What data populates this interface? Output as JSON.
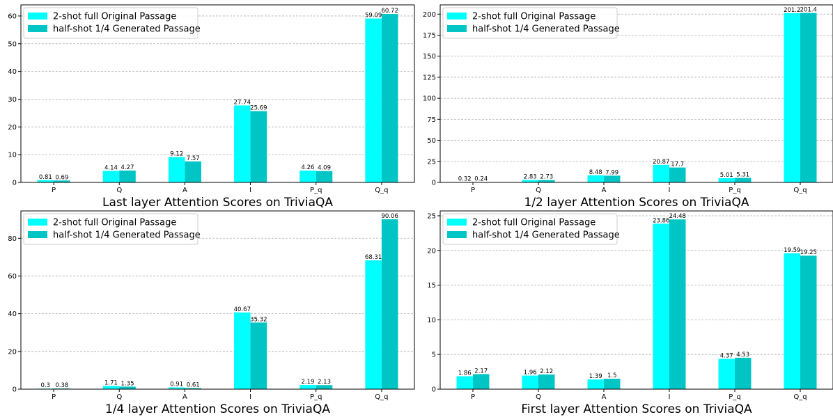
{
  "colors": {
    "series1": "#00ffff",
    "series2": "#00c5c5",
    "grid": "#b0b0b0",
    "axis": "#000000"
  },
  "legend": {
    "entries": [
      "2-shot full Original Passage",
      "half-shot 1/4 Generated Passage"
    ],
    "placement": "top-left"
  },
  "chart_data": [
    {
      "type": "bar",
      "title": "Last layer Attention Scores on TriviaQA",
      "categories": [
        "P",
        "Q",
        "A",
        "I",
        "P_q",
        "Q_q"
      ],
      "series": [
        {
          "name": "2-shot full Original Passage",
          "values": [
            0.81,
            4.14,
            9.12,
            27.74,
            4.26,
            59.09
          ],
          "labels": [
            "0.81",
            "4.14",
            "9.12",
            "27.74",
            "4.26",
            "59.09"
          ]
        },
        {
          "name": "half-shot 1/4 Generated Passage",
          "values": [
            0.69,
            4.27,
            7.57,
            25.69,
            4.09,
            60.72
          ],
          "labels": [
            "0.69",
            "4.27",
            "7.57",
            "25.69",
            "4.09",
            "60.72"
          ]
        }
      ],
      "ylim": [
        0,
        64
      ],
      "yticks": [
        0,
        10,
        20,
        30,
        40,
        50,
        60
      ],
      "grid": "y",
      "legend_placement": "top-left"
    },
    {
      "type": "bar",
      "title": "1/2 layer Attention Scores on TriviaQA",
      "categories": [
        "P",
        "Q",
        "A",
        "I",
        "P_q",
        "Q_q"
      ],
      "series": [
        {
          "name": "2-shot full Original Passage",
          "values": [
            0.32,
            2.83,
            8.48,
            20.87,
            5.01,
            201.2
          ],
          "labels": [
            "0.32",
            "2.83",
            "8.48",
            "20.87",
            "5.01",
            "201.2"
          ]
        },
        {
          "name": "half-shot 1/4 Generated Passage",
          "values": [
            0.24,
            2.73,
            7.99,
            17.7,
            5.31,
            201.4
          ],
          "labels": [
            "0.24",
            "2.73",
            "7.99",
            "17.7",
            "5.31",
            "201.4"
          ]
        }
      ],
      "ylim": [
        0,
        211
      ],
      "yticks": [
        0,
        25,
        50,
        75,
        100,
        125,
        150,
        175,
        200
      ],
      "grid": "y",
      "legend_placement": "top-left"
    },
    {
      "type": "bar",
      "title": "1/4 layer Attention Scores on TriviaQA",
      "categories": [
        "P",
        "Q",
        "A",
        "I",
        "P_q",
        "Q_q"
      ],
      "series": [
        {
          "name": "2-shot full Original Passage",
          "values": [
            0.3,
            1.71,
            0.91,
            40.67,
            2.19,
            68.31
          ],
          "labels": [
            "0.3",
            "1.71",
            "0.91",
            "40.67",
            "2.19",
            "68.31"
          ]
        },
        {
          "name": "half-shot 1/4 Generated Passage",
          "values": [
            0.38,
            1.35,
            0.61,
            35.32,
            2.13,
            90.06
          ],
          "labels": [
            "0.38",
            "1.35",
            "0.61",
            "35.32",
            "2.13",
            "90.06"
          ]
        }
      ],
      "ylim": [
        0,
        94.5
      ],
      "yticks": [
        0,
        20,
        40,
        60,
        80
      ],
      "grid": "y",
      "legend_placement": "top-left"
    },
    {
      "type": "bar",
      "title": "First layer Attention Scores on TriviaQA",
      "categories": [
        "P",
        "Q",
        "A",
        "I",
        "P_q",
        "Q_q"
      ],
      "series": [
        {
          "name": "2-shot full Original Passage",
          "values": [
            1.86,
            1.96,
            1.39,
            23.86,
            4.37,
            19.59
          ],
          "labels": [
            "1.86",
            "1.96",
            "1.39",
            "23.86",
            "4.37",
            "19.59"
          ]
        },
        {
          "name": "half-shot 1/4 Generated Passage",
          "values": [
            2.17,
            2.12,
            1.5,
            24.48,
            4.53,
            19.25
          ],
          "labels": [
            "2.17",
            "2.12",
            "1.5",
            "24.48",
            "4.53",
            "19.25"
          ]
        }
      ],
      "ylim": [
        0,
        25.7
      ],
      "yticks": [
        0,
        5,
        10,
        15,
        20,
        25
      ],
      "grid": "y",
      "legend_placement": "top-left"
    }
  ]
}
